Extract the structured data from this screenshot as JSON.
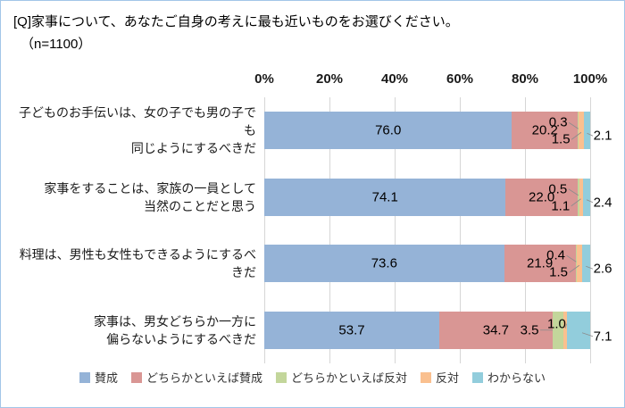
{
  "title": "[Q]家事について、あなたご自身の考えに最も近いものをお選びください。",
  "subtitle": "（n=1100）",
  "chart_data": {
    "type": "bar",
    "orientation": "horizontal-stacked",
    "title": "[Q]家事について、あなたご自身の考えに最も近いものをお選びください。",
    "sample_size_label": "（n=1100）",
    "xlim": [
      0,
      100
    ],
    "x_ticks": [
      "0%",
      "20%",
      "40%",
      "60%",
      "80%",
      "100%"
    ],
    "grid": true,
    "legend_position": "bottom",
    "categories": [
      [
        "子どものお手伝いは、女の子でも男の子でも",
        "同じようにするべきだ"
      ],
      [
        "家事をすることは、家族の一員として",
        "当然のことだと思う"
      ],
      [
        "料理は、男性も女性もできるようにするべきだ"
      ],
      [
        "家事は、男女どちらか一方に",
        "偏らないようにするべきだ"
      ]
    ],
    "series": [
      {
        "name": "賛成",
        "color": "#95b3d7",
        "values": [
          76.0,
          74.1,
          73.6,
          53.7
        ]
      },
      {
        "name": "どちらかといえば賛成",
        "color": "#d99694",
        "values": [
          20.2,
          22.0,
          21.9,
          34.7
        ]
      },
      {
        "name": "どちらかといえば反対",
        "color": "#c3d69b",
        "values": [
          0.3,
          0.5,
          0.4,
          3.5
        ]
      },
      {
        "name": "反対",
        "color": "#fac08f",
        "values": [
          1.5,
          1.1,
          1.5,
          1.0
        ]
      },
      {
        "name": "わからない",
        "color": "#92cddc",
        "values": [
          2.1,
          2.4,
          2.6,
          7.1
        ]
      }
    ]
  }
}
